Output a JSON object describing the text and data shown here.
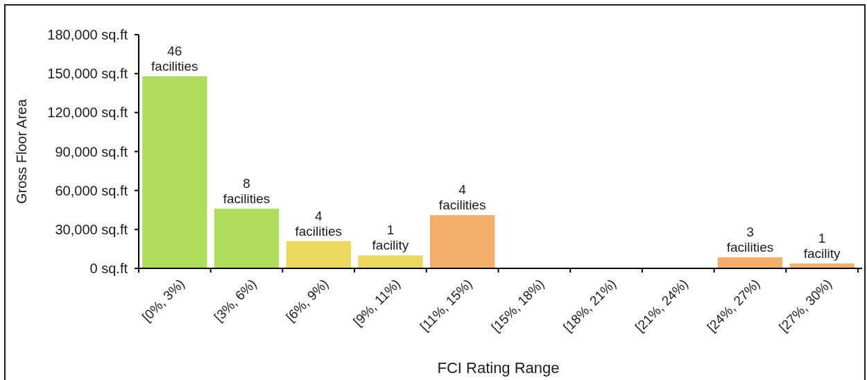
{
  "chart_data": {
    "type": "bar",
    "xlabel": "FCI Rating Range",
    "ylabel": "Gross Floor Area",
    "categories": [
      "[0%, 3%)",
      "[3%, 6%)",
      "[6%, 9%)",
      "[9%, 11%)",
      "[11%, 15%)",
      "[15%, 18%)",
      "[18%, 21%)",
      "[21%, 24%)",
      "[24%, 27%)",
      "[27%, 30%)"
    ],
    "values": [
      148000,
      46000,
      21000,
      10000,
      41000,
      null,
      null,
      null,
      8500,
      3700
    ],
    "colors": [
      "#b0dc5c",
      "#b0dc5c",
      "#ecd85c",
      "#ecd85c",
      "#f5ad6b",
      null,
      null,
      null,
      "#f5ad6b",
      "#f5ad6b"
    ],
    "annotations": [
      {
        "text": "46 facilities",
        "x": "[0%, 3%)",
        "y": 148000
      },
      {
        "text": "8 facilities",
        "x": "[3%, 6%)",
        "y": 46000
      },
      {
        "text": "4 facilities",
        "x": "[6%, 9%)",
        "y": 21000
      },
      {
        "text": "1 facility",
        "x": "[9%, 11%)",
        "y": 10000
      },
      {
        "text": "4 facilities",
        "x": "[11%, 15%)",
        "y": 41000
      },
      {
        "text": "3 facilities",
        "x": "[24%, 27%)",
        "y": 8500
      },
      {
        "text": "1 facility",
        "x": "[27%, 30%)",
        "y": 3700
      }
    ],
    "ylim": [
      0,
      180000
    ],
    "yticks": [
      {
        "value": 0,
        "label": "0 sq.ft"
      },
      {
        "value": 30000,
        "label": "30,000 sq.ft"
      },
      {
        "value": 60000,
        "label": "60,000 sq.ft"
      },
      {
        "value": 90000,
        "label": "90,000 sq.ft"
      },
      {
        "value": 120000,
        "label": "120,000 sq.ft"
      },
      {
        "value": 150000,
        "label": "150,000 sq.ft"
      },
      {
        "value": 180000,
        "label": "180,000 sq.ft"
      }
    ]
  }
}
